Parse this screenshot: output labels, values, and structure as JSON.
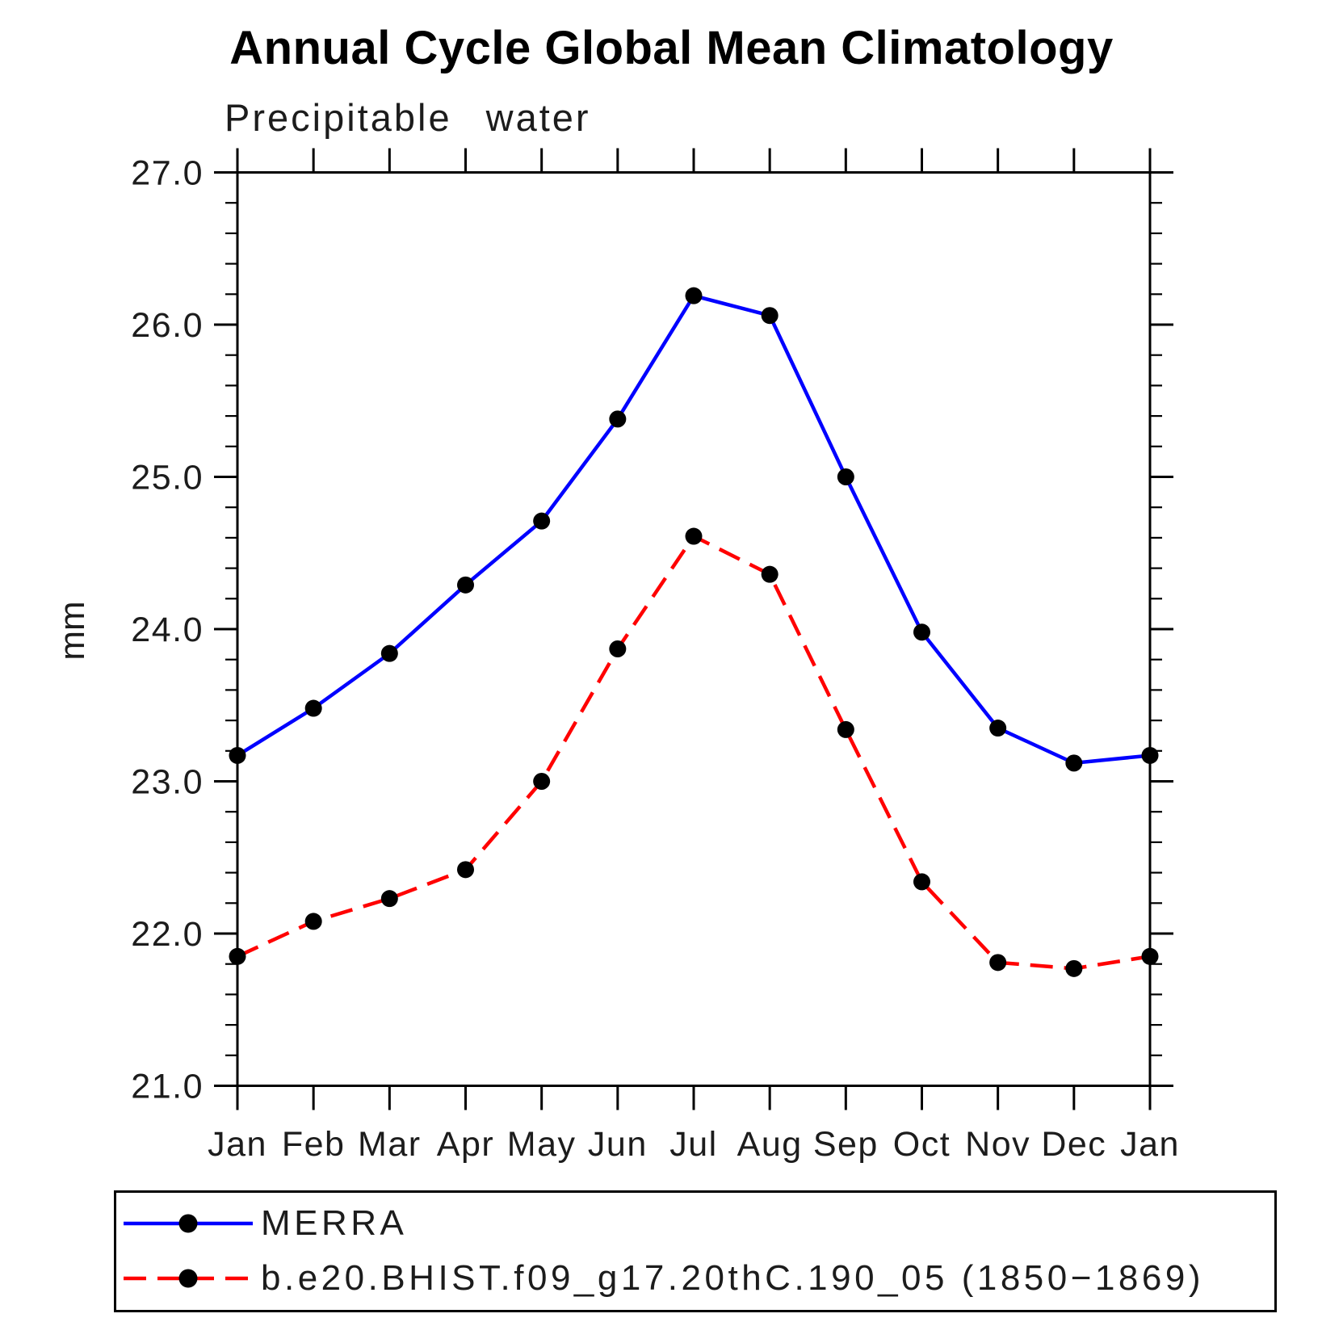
{
  "chart_data": {
    "type": "line",
    "title": "Annual Cycle Global Mean Climatology",
    "subtitle": "Precipitable water",
    "ylabel": "mm",
    "xlabel": "",
    "categories": [
      "Jan",
      "Feb",
      "Mar",
      "Apr",
      "May",
      "Jun",
      "Jul",
      "Aug",
      "Sep",
      "Oct",
      "Nov",
      "Dec",
      "Jan"
    ],
    "y_ticks": [
      "21.0",
      "22.0",
      "23.0",
      "24.0",
      "25.0",
      "26.0",
      "27.0"
    ],
    "ylim": [
      21.0,
      27.0
    ],
    "y_major_step": 1.0,
    "y_minor_step": 0.2,
    "grid": false,
    "legend_position": "bottom-left",
    "axis_color": "#000000",
    "marker_color": "#000000",
    "series": [
      {
        "name": "MERRA",
        "color": "#0000ff",
        "style": "solid",
        "marker": "circle",
        "values": [
          23.17,
          23.48,
          23.84,
          24.29,
          24.71,
          25.38,
          26.19,
          26.06,
          25.0,
          23.98,
          23.35,
          23.12,
          23.17
        ]
      },
      {
        "name": "b.e20.BHIST.f09_g17.20thC.190_05 (1850−1869)",
        "color": "#ff0000",
        "style": "dashed",
        "marker": "circle",
        "values": [
          21.85,
          22.08,
          22.23,
          22.42,
          23.0,
          23.87,
          24.61,
          24.36,
          23.34,
          22.34,
          21.81,
          21.77,
          21.85
        ]
      }
    ]
  }
}
